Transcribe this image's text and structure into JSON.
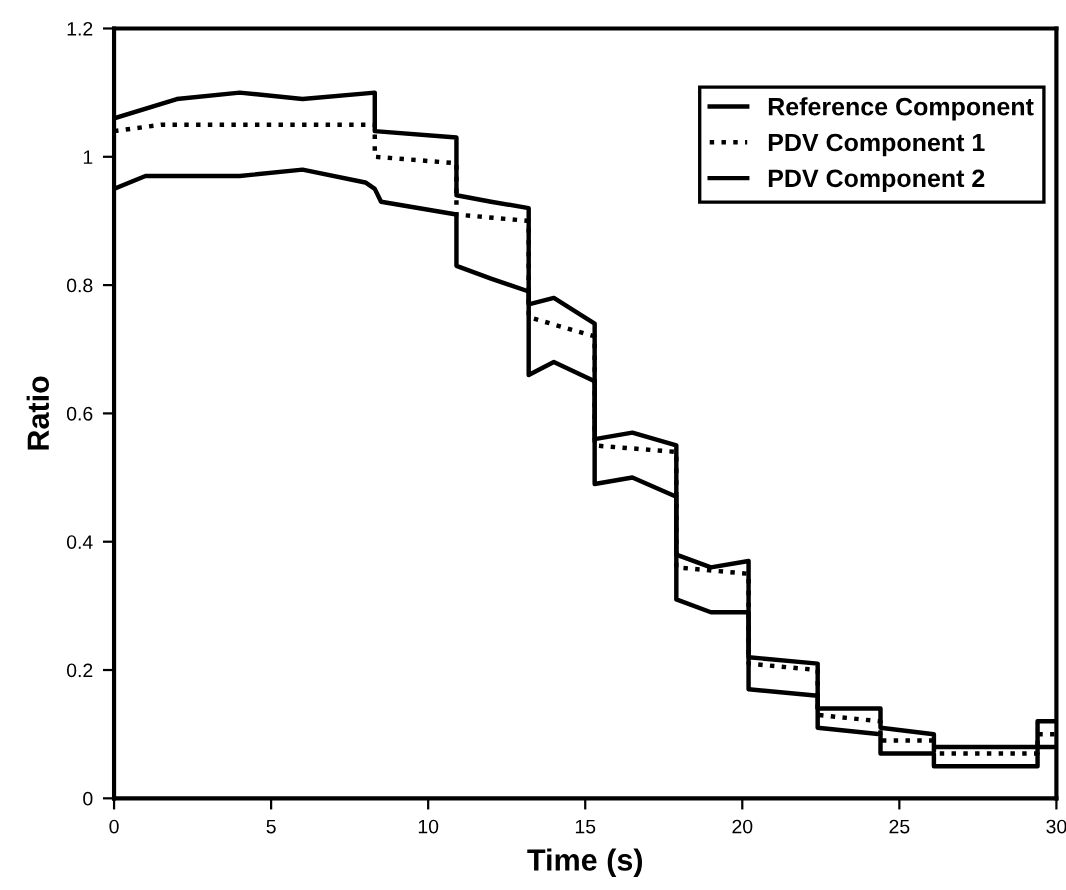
{
  "chart_data": {
    "type": "line",
    "xlabel": "Time (s)",
    "ylabel": "Ratio",
    "xlim": [
      0,
      30
    ],
    "xticks": [
      0,
      5,
      10,
      15,
      20,
      25,
      30
    ],
    "ylim": [
      0,
      1.2
    ],
    "yticks": [
      0,
      0.2,
      0.4,
      0.6,
      0.8,
      1,
      1.2
    ],
    "grid": false,
    "legend": "top right",
    "marker": "none",
    "series": [
      {
        "name": "Reference Component",
        "color": "#000000",
        "line_style": "solid",
        "x": [
          0,
          2,
          4,
          6,
          8.3,
          8.3,
          10.9,
          10.9,
          12,
          13.2,
          13.2,
          14,
          15.3,
          15.3,
          16.5,
          17.9,
          17.9,
          19,
          20.2,
          20.2,
          22.4,
          22.4,
          24.4,
          24.4,
          26.1,
          26.1,
          29.4,
          29.4,
          30
        ],
        "values": [
          1.06,
          1.09,
          1.1,
          1.09,
          1.1,
          1.04,
          1.03,
          0.94,
          0.93,
          0.92,
          0.77,
          0.78,
          0.74,
          0.56,
          0.57,
          0.55,
          0.38,
          0.36,
          0.37,
          0.22,
          0.21,
          0.14,
          0.14,
          0.11,
          0.1,
          0.08,
          0.08,
          0.12,
          0.12
        ]
      },
      {
        "name": "PDV Component 1",
        "color": "#000000",
        "line_style": "dotted",
        "x": [
          0,
          1.5,
          8.3,
          8.3,
          10.9,
          10.9,
          13.2,
          13.2,
          15.3,
          15.3,
          17.9,
          17.9,
          20.2,
          20.2,
          22.4,
          22.4,
          24.4,
          24.4,
          26.1,
          26.1,
          29.4,
          29.4,
          30
        ],
        "values": [
          1.04,
          1.05,
          1.05,
          1.0,
          0.99,
          0.91,
          0.9,
          0.75,
          0.72,
          0.55,
          0.54,
          0.36,
          0.35,
          0.21,
          0.2,
          0.13,
          0.12,
          0.09,
          0.09,
          0.07,
          0.07,
          0.1,
          0.1
        ]
      },
      {
        "name": "PDV Component 2",
        "color": "#000000",
        "line_style": "solid",
        "x": [
          0,
          1,
          4,
          6,
          8,
          8.3,
          8.5,
          10.9,
          10.9,
          12,
          13.2,
          13.2,
          14,
          15.3,
          15.3,
          16.5,
          17.9,
          17.9,
          19,
          20.2,
          20.2,
          22.4,
          22.4,
          24.4,
          24.4,
          26.1,
          26.1,
          29.4,
          29.4,
          30
        ],
        "values": [
          0.95,
          0.97,
          0.97,
          0.98,
          0.96,
          0.95,
          0.93,
          0.91,
          0.83,
          0.81,
          0.79,
          0.66,
          0.68,
          0.65,
          0.49,
          0.5,
          0.47,
          0.31,
          0.29,
          0.29,
          0.17,
          0.16,
          0.11,
          0.1,
          0.07,
          0.07,
          0.05,
          0.05,
          0.08,
          0.08
        ]
      }
    ]
  }
}
